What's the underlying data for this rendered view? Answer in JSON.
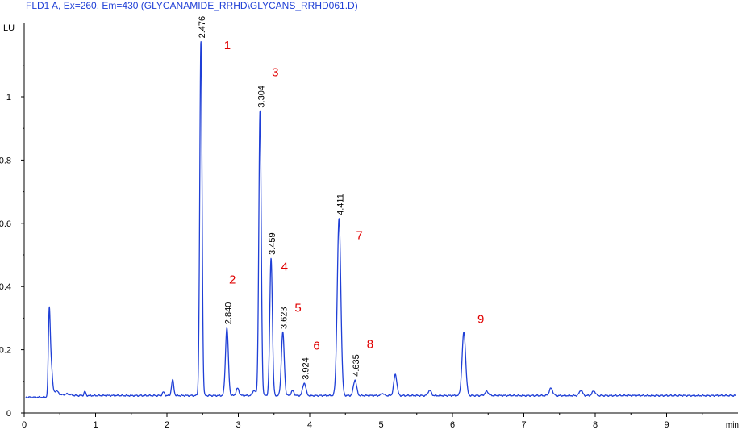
{
  "header": {
    "signal_label": "FLD1 A, Ex=260, Em=430 (GLYCANAMIDE_RRHD\\GLYCANS_RRHD061.D)"
  },
  "colors": {
    "trace": "#1f3fd6",
    "header": "#1f3fd6",
    "peak_numbers": "#e00000",
    "axis": "#000000"
  },
  "chart_data": {
    "type": "line",
    "title": "FLD1 A, Ex=260, Em=430 (GLYCANAMIDE_RRHD\\GLYCANS_RRHD061.D)",
    "xlabel": "min",
    "ylabel": "LU",
    "xlim": [
      0,
      10
    ],
    "ylim": [
      0,
      1.2
    ],
    "x_ticks": [
      0,
      1,
      2,
      3,
      4,
      5,
      6,
      7,
      8,
      9
    ],
    "x_tick_labels": [
      "0",
      "1",
      "2",
      "3",
      "4",
      "5",
      "6",
      "7",
      "8",
      "9"
    ],
    "y_ticks": [
      0,
      0.2,
      0.4,
      0.6,
      0.8,
      1.0
    ],
    "y_tick_labels": [
      "0",
      "0.2",
      "0.4",
      "0.6",
      "0.8",
      "1"
    ],
    "baseline": 0.055,
    "grid": false,
    "legend": "none",
    "peaks": [
      {
        "rt": 0.35,
        "height": 0.255,
        "width": 0.012
      },
      {
        "rt": 0.37,
        "height": 0.18,
        "width": 0.02
      },
      {
        "rt": 0.45,
        "height": 0.07,
        "width": 0.03
      },
      {
        "rt": 0.6,
        "height": 0.06,
        "width": 0.05
      },
      {
        "rt": 0.85,
        "height": 0.068,
        "width": 0.012
      },
      {
        "rt": 1.95,
        "height": 0.066,
        "width": 0.015
      },
      {
        "rt": 2.08,
        "height": 0.104,
        "width": 0.016
      },
      {
        "rt": 2.476,
        "height": 1.175,
        "width": 0.016
      },
      {
        "rt": 2.84,
        "height": 0.27,
        "width": 0.02
      },
      {
        "rt": 2.99,
        "height": 0.078,
        "width": 0.02
      },
      {
        "rt": 3.22,
        "height": 0.072,
        "width": 0.02
      },
      {
        "rt": 3.304,
        "height": 0.955,
        "width": 0.017
      },
      {
        "rt": 3.459,
        "height": 0.49,
        "width": 0.018
      },
      {
        "rt": 3.623,
        "height": 0.255,
        "width": 0.02
      },
      {
        "rt": 3.76,
        "height": 0.07,
        "width": 0.02
      },
      {
        "rt": 3.924,
        "height": 0.095,
        "width": 0.022
      },
      {
        "rt": 4.411,
        "height": 0.615,
        "width": 0.025
      },
      {
        "rt": 4.635,
        "height": 0.105,
        "width": 0.022
      },
      {
        "rt": 5.02,
        "height": 0.062,
        "width": 0.02
      },
      {
        "rt": 5.2,
        "height": 0.122,
        "width": 0.022
      },
      {
        "rt": 5.68,
        "height": 0.072,
        "width": 0.022
      },
      {
        "rt": 6.16,
        "height": 0.255,
        "width": 0.025
      },
      {
        "rt": 6.48,
        "height": 0.068,
        "width": 0.025
      },
      {
        "rt": 7.38,
        "height": 0.078,
        "width": 0.025
      },
      {
        "rt": 7.8,
        "height": 0.072,
        "width": 0.022
      },
      {
        "rt": 7.98,
        "height": 0.07,
        "width": 0.022
      }
    ],
    "peak_labels": [
      {
        "rt": 2.476,
        "label": "2.476",
        "y": 1.175
      },
      {
        "rt": 2.84,
        "label": "2.840",
        "y": 0.27
      },
      {
        "rt": 3.304,
        "label": "3.304",
        "y": 0.955
      },
      {
        "rt": 3.459,
        "label": "3.459",
        "y": 0.49
      },
      {
        "rt": 3.623,
        "label": "3.623",
        "y": 0.255
      },
      {
        "rt": 3.924,
        "label": "3.924",
        "y": 0.095
      },
      {
        "rt": 4.411,
        "label": "4.411",
        "y": 0.615
      },
      {
        "rt": 4.635,
        "label": "4.635",
        "y": 0.105
      }
    ],
    "peak_numbers": [
      {
        "number": "1",
        "x": 2.8,
        "y": 1.15
      },
      {
        "number": "2",
        "x": 2.87,
        "y": 0.41
      },
      {
        "number": "3",
        "x": 3.47,
        "y": 1.065
      },
      {
        "number": "4",
        "x": 3.6,
        "y": 0.45
      },
      {
        "number": "5",
        "x": 3.79,
        "y": 0.32
      },
      {
        "number": "6",
        "x": 4.05,
        "y": 0.2
      },
      {
        "number": "7",
        "x": 4.65,
        "y": 0.55
      },
      {
        "number": "8",
        "x": 4.8,
        "y": 0.205
      },
      {
        "number": "9",
        "x": 6.35,
        "y": 0.285
      }
    ]
  }
}
